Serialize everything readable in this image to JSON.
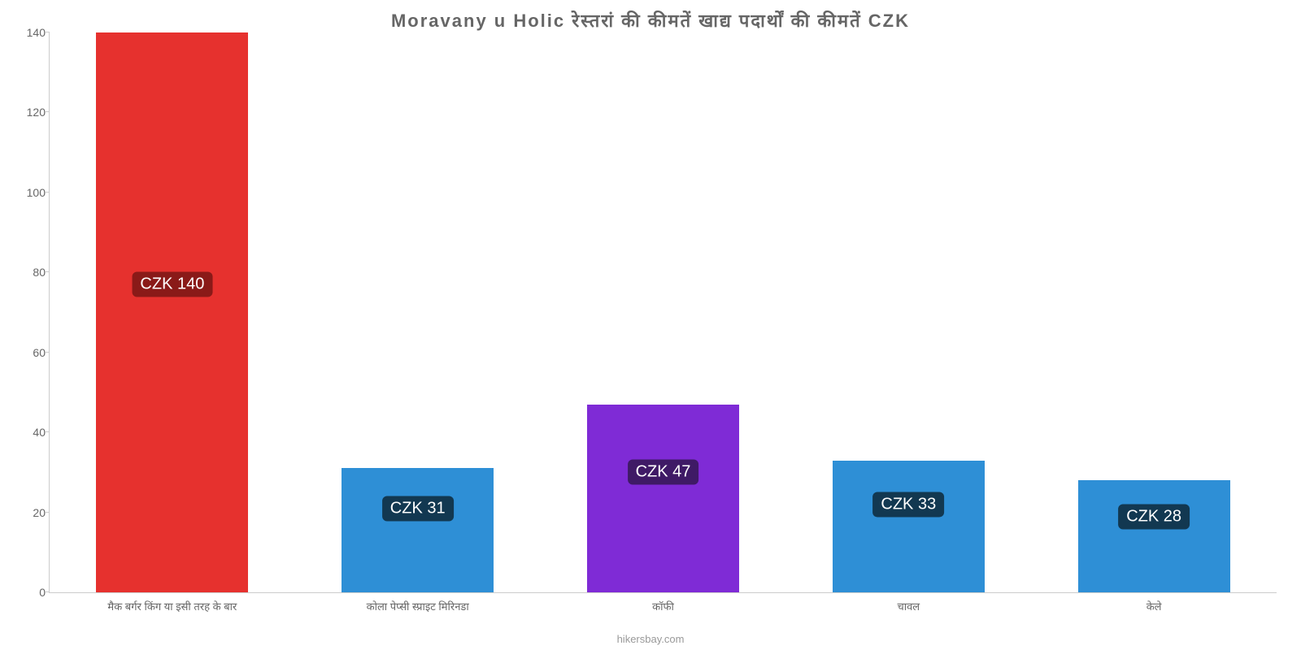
{
  "chart": {
    "type": "bar",
    "title": "Moravany u Holic रेस्तरां    की    कीमतें    खाद्य    पदार्थों    की    कीमतें    CZK",
    "title_fontsize": 22,
    "title_color": "#666666",
    "background_color": "#ffffff",
    "axis_color": "#cccccc",
    "ylim": [
      0,
      140
    ],
    "ytick_step": 20,
    "yticks": [
      0,
      20,
      40,
      60,
      80,
      100,
      120,
      140
    ],
    "ytick_fontsize": 14,
    "ytick_color": "#666666",
    "xlabel_fontsize": 13,
    "xlabel_color": "#666666",
    "bar_width_ratio": 0.62,
    "bars": [
      {
        "category": "मैक बर्गर किंग या इसी तरह के बार",
        "value": 140,
        "color": "#e6312e",
        "label": "CZK 140",
        "label_bg": "#8a1a18",
        "label_pos": 77
      },
      {
        "category": "कोला पेप्सी स्प्राइट मिरिनडा",
        "value": 31,
        "color": "#2e8fd6",
        "label": "CZK 31",
        "label_bg": "#123851",
        "label_pos": 21
      },
      {
        "category": "कॉफी",
        "value": 47,
        "color": "#7f2bd6",
        "label": "CZK 47",
        "label_bg": "#3f1a66",
        "label_pos": 30
      },
      {
        "category": "चावल",
        "value": 33,
        "color": "#2e8fd6",
        "label": "CZK 33",
        "label_bg": "#123851",
        "label_pos": 22
      },
      {
        "category": "केले",
        "value": 28,
        "color": "#2e8fd6",
        "label": "CZK 28",
        "label_bg": "#123851",
        "label_pos": 19
      }
    ],
    "watermark": "hikersbay.com",
    "watermark_color": "#999999",
    "watermark_fontsize": 13,
    "label_fontsize": 20,
    "label_text_color": "#ffffff"
  }
}
